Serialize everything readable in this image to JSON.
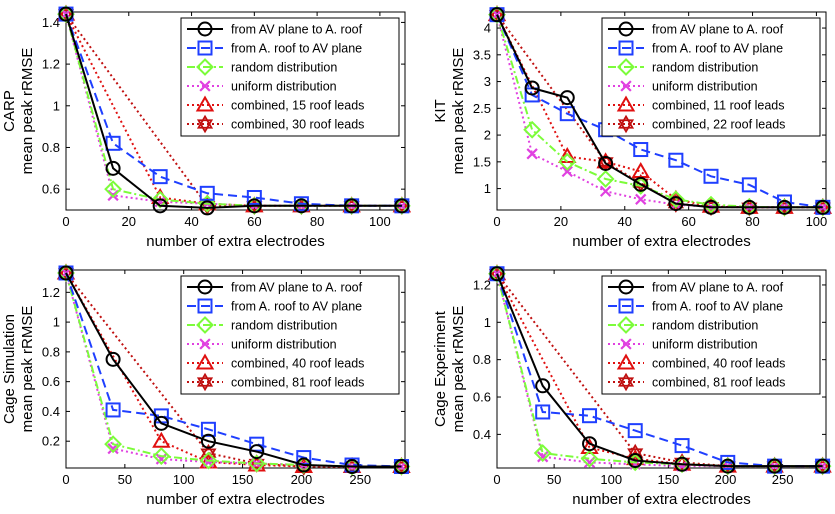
{
  "colors": {
    "av_to_roof": "#000000",
    "roof_to_av": "#1f3fff",
    "random": "#7cfc3a",
    "uniform": "#e040e0",
    "combined_a": "#e01010",
    "combined_b": "#c01010"
  },
  "chart_data": [
    {
      "type": "line",
      "id": "carp",
      "ylabel_top": "CARP",
      "ylabel": "mean peak rRMSE",
      "xlabel": "number of extra electrodes",
      "xlim": [
        0,
        108
      ],
      "ylim": [
        0.5,
        1.45
      ],
      "xticks": [
        0,
        20,
        40,
        60,
        80,
        100
      ],
      "yticks": [
        0.6,
        0.8,
        1,
        1.2,
        1.4
      ],
      "ytick_labels": [
        "0.6",
        "0.8",
        "1",
        "1.2",
        "1.4"
      ],
      "legend": "top-right",
      "series": [
        {
          "name": "from AV plane to A. roof",
          "style": "av",
          "x": [
            0,
            15,
            30,
            45,
            60,
            75,
            91,
            107
          ],
          "y": [
            1.44,
            0.7,
            0.52,
            0.51,
            0.52,
            0.52,
            0.52,
            0.52
          ]
        },
        {
          "name": "from A. roof to AV plane",
          "style": "roof",
          "x": [
            0,
            15,
            30,
            45,
            60,
            75,
            91,
            107
          ],
          "y": [
            1.44,
            0.82,
            0.66,
            0.58,
            0.56,
            0.53,
            0.52,
            0.52
          ]
        },
        {
          "name": "random distribution",
          "style": "random",
          "x": [
            0,
            15,
            30,
            45,
            60,
            75,
            91,
            107
          ],
          "y": [
            1.44,
            0.6,
            0.55,
            0.53,
            0.52,
            0.52,
            0.52,
            0.52
          ]
        },
        {
          "name": "uniform distribution",
          "style": "uniform",
          "x": [
            0,
            15,
            30,
            45,
            60,
            75,
            91,
            107
          ],
          "y": [
            1.44,
            0.57,
            0.54,
            0.53,
            0.52,
            0.52,
            0.52,
            0.52
          ]
        },
        {
          "name": "combined, 15 roof leads",
          "style": "combA",
          "x": [
            0,
            30,
            45,
            60,
            75,
            91,
            107
          ],
          "y": [
            1.44,
            0.56,
            0.53,
            0.52,
            0.52,
            0.52,
            0.52
          ]
        },
        {
          "name": "combined, 30 roof leads",
          "style": "combB",
          "x": [
            0,
            45,
            60,
            75,
            91,
            107
          ],
          "y": [
            1.44,
            0.52,
            0.52,
            0.52,
            0.52,
            0.52
          ]
        }
      ]
    },
    {
      "type": "line",
      "id": "kit",
      "ylabel_top": "KIT",
      "ylabel": "mean peak rRMSE",
      "xlabel": "number of extra electrodes",
      "xlim": [
        0,
        103
      ],
      "ylim": [
        0.6,
        4.3
      ],
      "xticks": [
        0,
        20,
        40,
        60,
        80,
        100
      ],
      "yticks": [
        1,
        1.5,
        2,
        2.5,
        3,
        3.5,
        4
      ],
      "ytick_labels": [
        "1",
        "1.5",
        "2",
        "2.5",
        "3",
        "3.5",
        "4"
      ],
      "legend": "top-right",
      "series": [
        {
          "name": "from AV plane to A. roof",
          "style": "av",
          "x": [
            0,
            11,
            22,
            34,
            45,
            56,
            67,
            79,
            90,
            102
          ],
          "y": [
            4.25,
            2.88,
            2.7,
            1.47,
            1.08,
            0.72,
            0.65,
            0.65,
            0.65,
            0.65
          ]
        },
        {
          "name": "from A. roof to AV plane",
          "style": "roof",
          "x": [
            0,
            11,
            22,
            34,
            45,
            56,
            67,
            79,
            90,
            102
          ],
          "y": [
            4.25,
            2.75,
            2.4,
            2.1,
            1.73,
            1.53,
            1.23,
            1.07,
            0.75,
            0.65
          ]
        },
        {
          "name": "random distribution",
          "style": "random",
          "x": [
            0,
            11,
            22,
            34,
            45,
            56,
            67,
            79,
            90,
            102
          ],
          "y": [
            4.25,
            2.1,
            1.5,
            1.18,
            1.05,
            0.8,
            0.7,
            0.66,
            0.65,
            0.65
          ]
        },
        {
          "name": "uniform distribution",
          "style": "uniform",
          "x": [
            0,
            11,
            22,
            34,
            45,
            56,
            67,
            79,
            90,
            102
          ],
          "y": [
            4.25,
            1.65,
            1.32,
            0.95,
            0.8,
            0.7,
            0.66,
            0.65,
            0.65,
            0.65
          ]
        },
        {
          "name": "combined, 11 roof leads",
          "style": "combA",
          "x": [
            0,
            22,
            34,
            45,
            56,
            67,
            79,
            90,
            102
          ],
          "y": [
            4.25,
            1.6,
            1.5,
            1.32,
            0.8,
            0.67,
            0.65,
            0.65,
            0.65
          ]
        },
        {
          "name": "combined, 22 roof leads",
          "style": "combB",
          "x": [
            0,
            34,
            45,
            56,
            67,
            79,
            90,
            102
          ],
          "y": [
            4.25,
            1.5,
            1.1,
            0.72,
            0.66,
            0.65,
            0.65,
            0.65
          ]
        }
      ]
    },
    {
      "type": "line",
      "id": "cage-sim",
      "ylabel_top": "Cage Simulation",
      "ylabel": "mean peak rRMSE",
      "xlabel": "number of extra electrodes",
      "xlim": [
        0,
        288
      ],
      "ylim": [
        0.02,
        1.35
      ],
      "xticks": [
        0,
        50,
        100,
        150,
        200,
        250
      ],
      "yticks": [
        0.2,
        0.4,
        0.6,
        0.8,
        1,
        1.2
      ],
      "ytick_labels": [
        "0.2",
        "0.4",
        "0.6",
        "0.8",
        "1",
        "1.2"
      ],
      "legend": "top-right",
      "series": [
        {
          "name": "from AV plane to A. roof",
          "style": "av",
          "x": [
            0,
            40,
            81,
            121,
            162,
            202,
            243,
            285
          ],
          "y": [
            1.33,
            0.75,
            0.32,
            0.2,
            0.13,
            0.04,
            0.03,
            0.03
          ]
        },
        {
          "name": "from A. roof to AV plane",
          "style": "roof",
          "x": [
            0,
            40,
            81,
            121,
            162,
            202,
            243,
            285
          ],
          "y": [
            1.33,
            0.41,
            0.37,
            0.28,
            0.18,
            0.09,
            0.04,
            0.03
          ]
        },
        {
          "name": "random distribution",
          "style": "random",
          "x": [
            0,
            40,
            81,
            121,
            162,
            202,
            243,
            285
          ],
          "y": [
            1.33,
            0.18,
            0.1,
            0.07,
            0.05,
            0.04,
            0.03,
            0.03
          ]
        },
        {
          "name": "uniform distribution",
          "style": "uniform",
          "x": [
            0,
            40,
            81,
            121,
            162,
            202,
            243,
            285
          ],
          "y": [
            1.33,
            0.15,
            0.08,
            0.06,
            0.05,
            0.04,
            0.03,
            0.03
          ]
        },
        {
          "name": "combined, 40 roof leads",
          "style": "combA",
          "x": [
            0,
            81,
            121,
            162,
            202,
            243,
            285
          ],
          "y": [
            1.33,
            0.2,
            0.06,
            0.04,
            0.03,
            0.03,
            0.03
          ]
        },
        {
          "name": "combined, 81 roof leads",
          "style": "combB",
          "x": [
            0,
            121,
            162,
            202,
            243,
            285
          ],
          "y": [
            1.33,
            0.12,
            0.05,
            0.03,
            0.03,
            0.03
          ]
        }
      ]
    },
    {
      "type": "line",
      "id": "cage-exp",
      "ylabel_top": "Cage Experiment",
      "ylabel": "mean peak rRMSE",
      "xlabel": "number of extra electrodes",
      "xlim": [
        0,
        288
      ],
      "ylim": [
        0.22,
        1.28
      ],
      "xticks": [
        0,
        50,
        100,
        150,
        200,
        250
      ],
      "yticks": [
        0.4,
        0.6,
        0.8,
        1,
        1.2
      ],
      "ytick_labels": [
        "0.4",
        "0.6",
        "0.8",
        "1",
        "1.2"
      ],
      "legend": "top-right",
      "series": [
        {
          "name": "from AV plane to A. roof",
          "style": "av",
          "x": [
            0,
            40,
            81,
            121,
            162,
            202,
            243,
            285
          ],
          "y": [
            1.26,
            0.66,
            0.35,
            0.26,
            0.24,
            0.23,
            0.23,
            0.23
          ]
        },
        {
          "name": "from A. roof to AV plane",
          "style": "roof",
          "x": [
            0,
            40,
            81,
            121,
            162,
            202,
            243,
            285
          ],
          "y": [
            1.26,
            0.52,
            0.5,
            0.42,
            0.34,
            0.25,
            0.23,
            0.23
          ]
        },
        {
          "name": "random distribution",
          "style": "random",
          "x": [
            0,
            40,
            81,
            121,
            162,
            202,
            243,
            285
          ],
          "y": [
            1.26,
            0.3,
            0.27,
            0.25,
            0.24,
            0.23,
            0.23,
            0.23
          ]
        },
        {
          "name": "uniform distribution",
          "style": "uniform",
          "x": [
            0,
            40,
            81,
            121,
            162,
            202,
            243,
            285
          ],
          "y": [
            1.26,
            0.28,
            0.25,
            0.24,
            0.23,
            0.23,
            0.23,
            0.23
          ]
        },
        {
          "name": "combined, 40 roof leads",
          "style": "combA",
          "x": [
            0,
            81,
            121,
            162,
            202,
            243,
            285
          ],
          "y": [
            1.26,
            0.33,
            0.27,
            0.24,
            0.23,
            0.23,
            0.23
          ]
        },
        {
          "name": "combined, 81 roof leads",
          "style": "combB",
          "x": [
            0,
            121,
            162,
            202,
            243,
            285
          ],
          "y": [
            1.26,
            0.3,
            0.25,
            0.23,
            0.23,
            0.23
          ]
        }
      ]
    }
  ]
}
